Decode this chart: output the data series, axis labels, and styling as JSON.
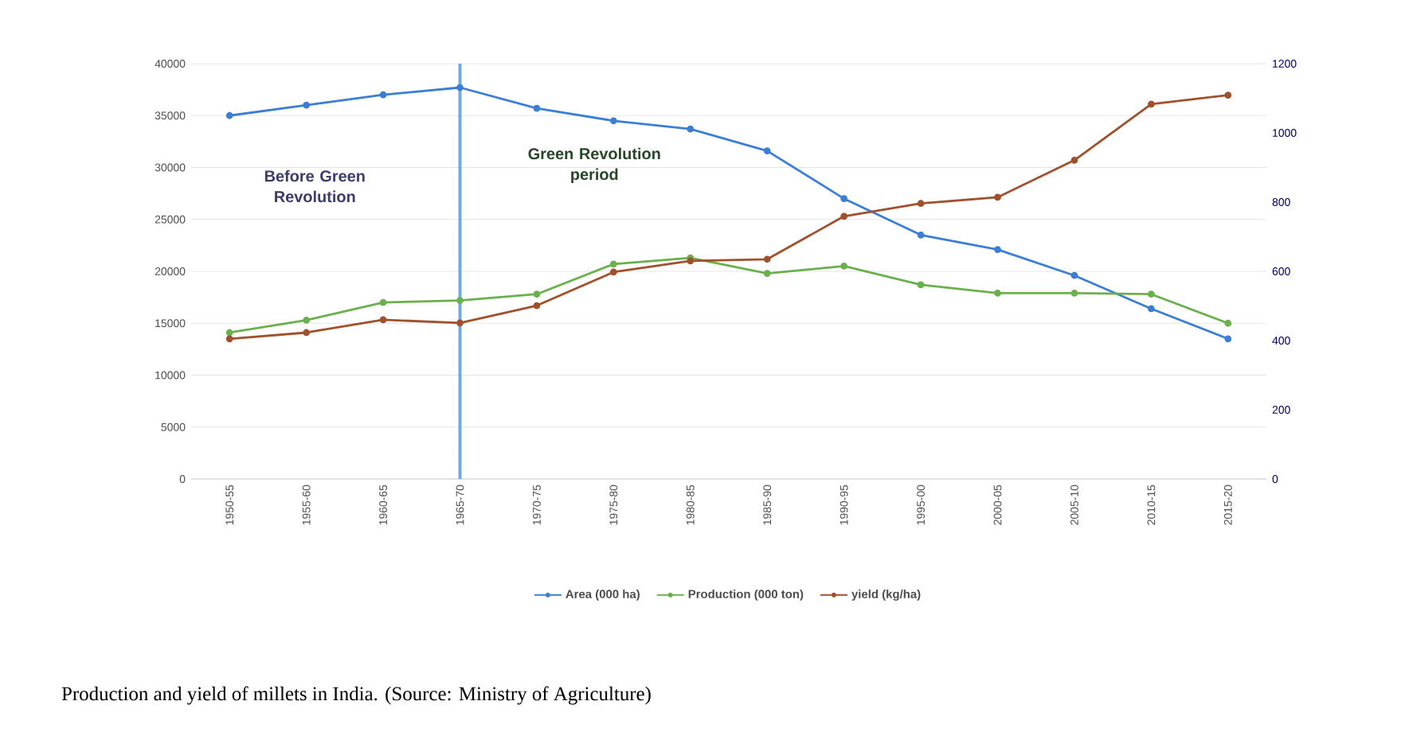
{
  "chart_data": {
    "type": "line",
    "categories": [
      "1950-55",
      "1955-60",
      "1960-65",
      "1965-70",
      "1970-75",
      "1975-80",
      "1980-85",
      "1985-90",
      "1990-95",
      "1995-00",
      "2000-05",
      "2005-10",
      "2010-15",
      "2015-20"
    ],
    "series": [
      {
        "name": "Area (000 ha)",
        "color": "#3a7fd5",
        "values": [
          35000,
          36000,
          37000,
          37700,
          35700,
          34500,
          33700,
          31600,
          27000,
          23500,
          22100,
          19600,
          16400,
          13500
        ]
      },
      {
        "name": "Production (000 ton)",
        "color": "#6ab04c",
        "values": [
          14100,
          15300,
          17000,
          17200,
          17800,
          20700,
          21300,
          19800,
          20500,
          18700,
          17900,
          17900,
          17800,
          15000
        ]
      },
      {
        "name": "yield (kg/ha)",
        "color": "#a0502a",
        "axis": "y2",
        "values": [
          405,
          423,
          460,
          451,
          501,
          598,
          630,
          635,
          759,
          796,
          814,
          921,
          1083,
          1109
        ]
      }
    ],
    "ylim": [
      0,
      40000
    ],
    "yticks": [
      0,
      5000,
      10000,
      15000,
      20000,
      25000,
      30000,
      35000,
      40000
    ],
    "y2lim": [
      0,
      1200
    ],
    "y2ticks": [
      0,
      200,
      400,
      600,
      800,
      1000,
      1200
    ],
    "ref_lines": [
      {
        "axis": "x",
        "value": "1965-70",
        "color": "#6fa8e8"
      }
    ],
    "annotations": [
      "Before Green Revolution",
      "Green Revolution period",
      "Production and yield of millets in India. (Source: Ministry of Agriculture)"
    ],
    "grid": "y",
    "legend": "bottom",
    "marker": "circle",
    "line_style": "solid"
  }
}
